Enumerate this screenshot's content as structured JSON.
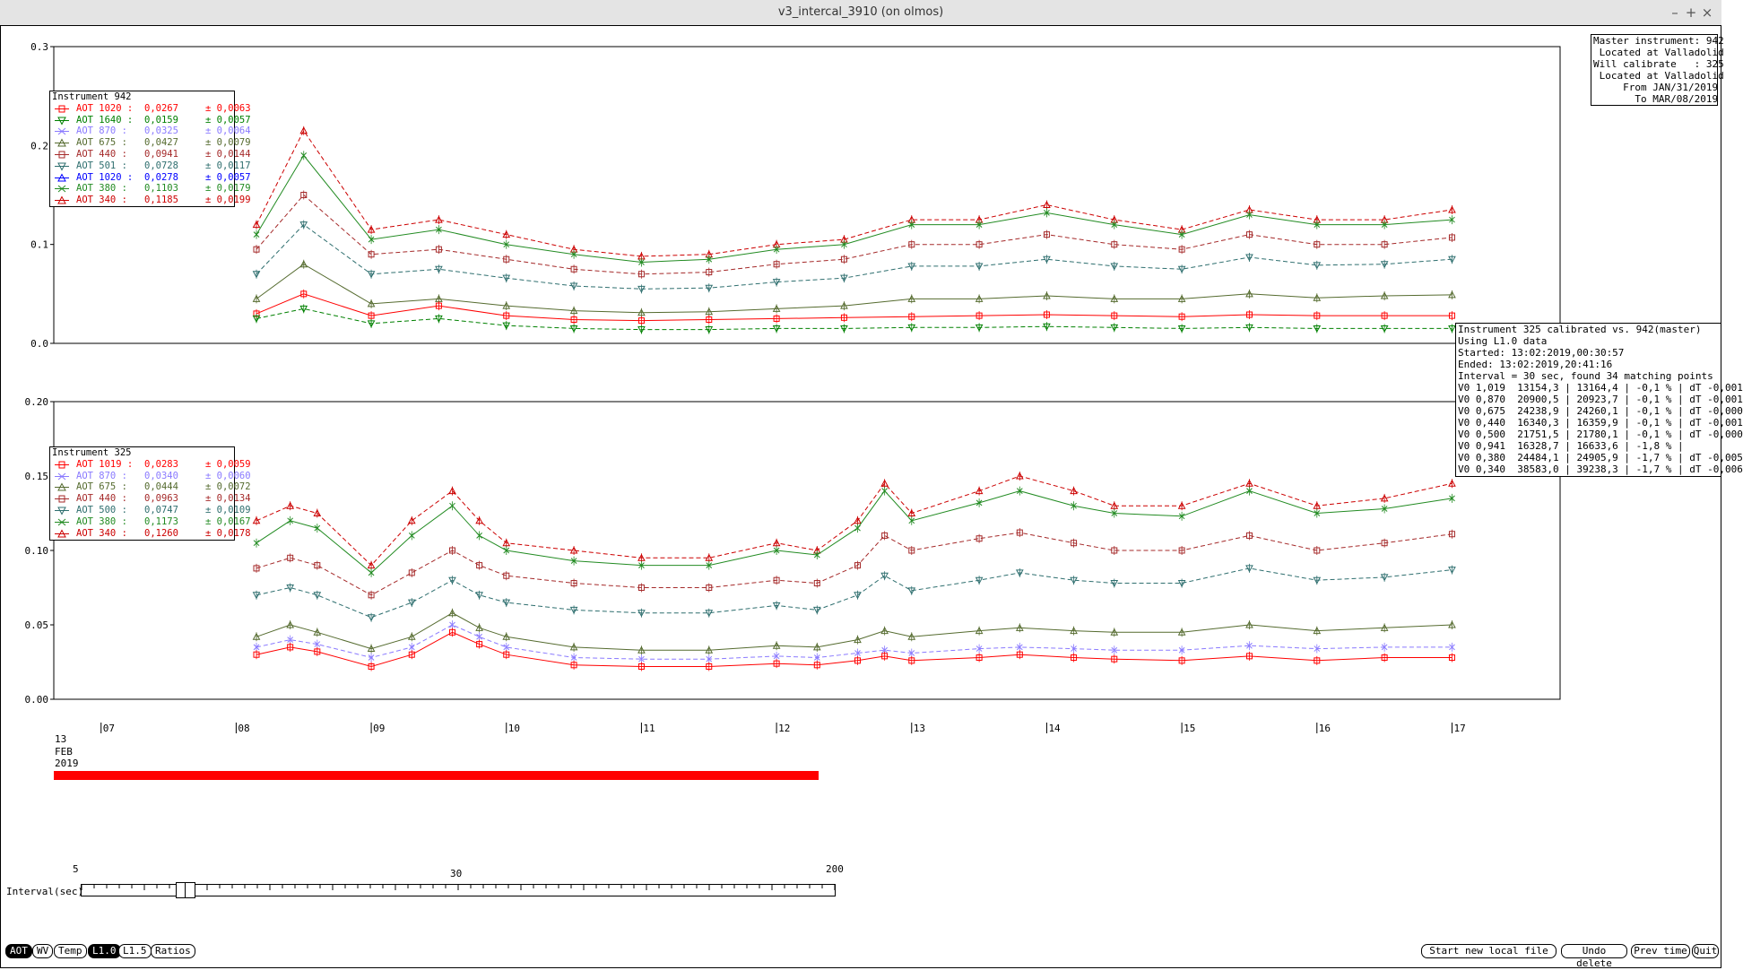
{
  "window": {
    "title": "v3_intercal_3910 (on olmos)",
    "buttons": [
      "–",
      "+",
      "×"
    ]
  },
  "info_top_right": [
    "Master instrument: 942",
    " Located at Valladolid",
    "Will calibrate   : 325",
    " Located at Valladolid",
    "     From JAN/31/2019",
    "       To MAR/08/2019"
  ],
  "calib_box": [
    "Instrument 325 calibrated vs. 942(master)",
    "Using L1.0 data",
    "Started: 13:02:2019,00:30:57",
    "Ended: 13:02:2019,20:41:16",
    "Interval = 30 sec, found 34 matching points",
    "V0 1,019  13154,3 | 13164,4 | -0,1 % | dT -0,001",
    "V0 0,870  20900,5 | 20923,7 | -0,1 % | dT -0,001",
    "V0 0,675  24238,9 | 24260,1 | -0,1 % | dT -0,000",
    "V0 0,440  16340,3 | 16359,9 | -0,1 % | dT -0,001",
    "V0 0,500  21751,5 | 21780,1 | -0,1 % | dT -0,000",
    "V0 0,941  16328,7 | 16633,6 | -1,8 % |",
    "V0 0,380  24484,1 | 24905,9 | -1,7 % | dT -0,005",
    "V0 0,340  38583,0 | 39238,3 | -1,7 % | dT -0,006"
  ],
  "legend_942": {
    "title": "Instrument 942",
    "items": [
      {
        "name": "AOT 1020 :",
        "value": "0,0267",
        "err": "± 0,0063",
        "color": "#ff0000",
        "marker": "square",
        "dash": "solid"
      },
      {
        "name": "AOT 1640 :",
        "value": "0,0159",
        "err": "± 0,0057",
        "color": "#008000",
        "marker": "tri-down",
        "dash": "dashed"
      },
      {
        "name": "AOT 870 :",
        "value": "0,0325",
        "err": "± 0,0064",
        "color": "#8a7aff",
        "marker": "x",
        "dash": "solid"
      },
      {
        "name": "AOT 675 :",
        "value": "0,0427",
        "err": "± 0,0079",
        "color": "#556b2f",
        "marker": "tri-up",
        "dash": "solid"
      },
      {
        "name": "AOT 440 :",
        "value": "0,0941",
        "err": "± 0,0144",
        "color": "#a52a2a",
        "marker": "square",
        "dash": "dashed"
      },
      {
        "name": "AOT 501 :",
        "value": "0,0728",
        "err": "± 0,0117",
        "color": "#2f6f6f",
        "marker": "tri-down",
        "dash": "dashed"
      },
      {
        "name": "AOT 1020 :",
        "value": "0,0278",
        "err": "± 0,0057",
        "color": "#0000ff",
        "marker": "tri-up",
        "dash": "solid"
      },
      {
        "name": "AOT 380 :",
        "value": "0,1103",
        "err": "± 0,0179",
        "color": "#228b22",
        "marker": "x",
        "dash": "solid"
      },
      {
        "name": "AOT 340 :",
        "value": "0,1185",
        "err": "± 0,0199",
        "color": "#cc0000",
        "marker": "tri-up",
        "dash": "dashed"
      }
    ]
  },
  "legend_325": {
    "title": "Instrument 325",
    "items": [
      {
        "name": "AOT 1019 :",
        "value": "0,0283",
        "err": "± 0,0059",
        "color": "#ff0000",
        "marker": "square",
        "dash": "solid"
      },
      {
        "name": "AOT 870 :",
        "value": "0,0340",
        "err": "± 0,0060",
        "color": "#8a7aff",
        "marker": "x",
        "dash": "dashed"
      },
      {
        "name": "AOT 675 :",
        "value": "0,0444",
        "err": "± 0,0072",
        "color": "#556b2f",
        "marker": "tri-up",
        "dash": "solid"
      },
      {
        "name": "AOT 440 :",
        "value": "0,0963",
        "err": "± 0,0134",
        "color": "#a52a2a",
        "marker": "square",
        "dash": "dashed"
      },
      {
        "name": "AOT 500 :",
        "value": "0,0747",
        "err": "± 0,0109",
        "color": "#2f6f6f",
        "marker": "tri-down",
        "dash": "dashed"
      },
      {
        "name": "AOT 380 :",
        "value": "0,1173",
        "err": "± 0,0167",
        "color": "#228b22",
        "marker": "x",
        "dash": "solid"
      },
      {
        "name": "AOT 340 :",
        "value": "0,1260",
        "err": "± 0,0178",
        "color": "#cc0000",
        "marker": "tri-up",
        "dash": "dashed"
      }
    ]
  },
  "date_label": [
    "13",
    "FEB",
    "2019"
  ],
  "interval": {
    "label": "Interval(sec)",
    "ticks": [
      "5",
      "30",
      "200"
    ],
    "value": 30
  },
  "bottom_left_buttons": [
    {
      "label": "AOT",
      "active": true
    },
    {
      "label": "WV",
      "active": false
    },
    {
      "label": "Temp",
      "active": false
    },
    {
      "label": "L1.0",
      "active": true
    },
    {
      "label": "L1.5",
      "active": false
    },
    {
      "label": "Ratios",
      "active": false
    }
  ],
  "bottom_right_buttons": [
    "Start new local file",
    "Undo delete",
    "Prev time",
    "Quit"
  ],
  "chart_data": [
    {
      "type": "line",
      "title": "",
      "xlabel": "",
      "ylabel": "",
      "xlim": [
        6.65,
        17.8
      ],
      "ylim": [
        0,
        0.3
      ],
      "x_tick_labels": [
        "07",
        "08",
        "09",
        "10",
        "11",
        "12",
        "13",
        "14",
        "15",
        "16",
        "17"
      ],
      "y_tick_labels": [
        "0.0",
        "0.1",
        "0.2",
        "0.3"
      ],
      "x_data_note_hours": true,
      "series": [
        {
          "name": "AOT 340",
          "x": [
            8.15,
            8.5,
            9.0,
            9.5,
            10.0,
            10.5,
            11.0,
            11.5,
            12.0,
            12.5,
            13.0,
            13.5,
            14.0,
            14.5,
            15.0,
            15.5,
            16.0,
            16.5,
            17.0
          ],
          "y": [
            0.12,
            0.215,
            0.115,
            0.125,
            0.11,
            0.095,
            0.088,
            0.09,
            0.1,
            0.105,
            0.125,
            0.125,
            0.14,
            0.125,
            0.115,
            0.135,
            0.125,
            0.125,
            0.135
          ]
        },
        {
          "name": "AOT 380",
          "x": [
            8.15,
            8.5,
            9.0,
            9.5,
            10.0,
            10.5,
            11.0,
            11.5,
            12.0,
            12.5,
            13.0,
            13.5,
            14.0,
            14.5,
            15.0,
            15.5,
            16.0,
            16.5,
            17.0
          ],
          "y": [
            0.11,
            0.19,
            0.105,
            0.115,
            0.1,
            0.09,
            0.082,
            0.085,
            0.095,
            0.1,
            0.12,
            0.12,
            0.132,
            0.12,
            0.11,
            0.13,
            0.12,
            0.12,
            0.125
          ]
        },
        {
          "name": "AOT 440",
          "x": [
            8.15,
            8.5,
            9.0,
            9.5,
            10.0,
            10.5,
            11.0,
            11.5,
            12.0,
            12.5,
            13.0,
            13.5,
            14.0,
            14.5,
            15.0,
            15.5,
            16.0,
            16.5,
            17.0
          ],
          "y": [
            0.095,
            0.15,
            0.09,
            0.095,
            0.085,
            0.075,
            0.07,
            0.072,
            0.08,
            0.085,
            0.1,
            0.1,
            0.11,
            0.1,
            0.095,
            0.11,
            0.1,
            0.1,
            0.107
          ]
        },
        {
          "name": "AOT 501",
          "x": [
            8.15,
            8.5,
            9.0,
            9.5,
            10.0,
            10.5,
            11.0,
            11.5,
            12.0,
            12.5,
            13.0,
            13.5,
            14.0,
            14.5,
            15.0,
            15.5,
            16.0,
            16.5,
            17.0
          ],
          "y": [
            0.07,
            0.12,
            0.07,
            0.075,
            0.066,
            0.058,
            0.055,
            0.056,
            0.062,
            0.066,
            0.078,
            0.078,
            0.085,
            0.078,
            0.075,
            0.087,
            0.079,
            0.08,
            0.085
          ]
        },
        {
          "name": "AOT 675",
          "x": [
            8.15,
            8.5,
            9.0,
            9.5,
            10.0,
            10.5,
            11.0,
            11.5,
            12.0,
            12.5,
            13.0,
            13.5,
            14.0,
            14.5,
            15.0,
            15.5,
            16.0,
            16.5,
            17.0
          ],
          "y": [
            0.045,
            0.08,
            0.04,
            0.045,
            0.038,
            0.033,
            0.031,
            0.032,
            0.035,
            0.038,
            0.045,
            0.045,
            0.048,
            0.045,
            0.045,
            0.05,
            0.046,
            0.048,
            0.049
          ]
        },
        {
          "name": "AOT 1020",
          "x": [
            8.15,
            8.5,
            9.0,
            9.5,
            10.0,
            10.5,
            11.0,
            11.5,
            12.0,
            12.5,
            13.0,
            13.5,
            14.0,
            14.5,
            15.0,
            15.5,
            16.0,
            16.5,
            17.0
          ],
          "y": [
            0.03,
            0.05,
            0.028,
            0.038,
            0.028,
            0.024,
            0.023,
            0.024,
            0.025,
            0.026,
            0.027,
            0.028,
            0.029,
            0.028,
            0.027,
            0.029,
            0.028,
            0.028,
            0.028
          ]
        },
        {
          "name": "AOT 1640",
          "x": [
            8.15,
            8.5,
            9.0,
            9.5,
            10.0,
            10.5,
            11.0,
            11.5,
            12.0,
            12.5,
            13.0,
            13.5,
            14.0,
            14.5,
            15.0,
            15.5,
            16.0,
            16.5,
            17.0
          ],
          "y": [
            0.025,
            0.035,
            0.02,
            0.025,
            0.018,
            0.015,
            0.014,
            0.014,
            0.015,
            0.015,
            0.016,
            0.016,
            0.017,
            0.016,
            0.015,
            0.016,
            0.015,
            0.015,
            0.015
          ]
        }
      ]
    },
    {
      "type": "line",
      "title": "",
      "xlabel": "",
      "ylabel": "",
      "xlim": [
        6.65,
        17.8
      ],
      "ylim": [
        0,
        0.2
      ],
      "x_tick_labels": [
        "07",
        "08",
        "09",
        "10",
        "11",
        "12",
        "13",
        "14",
        "15",
        "16",
        "17"
      ],
      "y_tick_labels": [
        "0.00",
        "0.05",
        "0.10",
        "0.15",
        "0.20"
      ],
      "series": [
        {
          "name": "AOT 340",
          "x": [
            8.15,
            8.4,
            8.6,
            9.0,
            9.3,
            9.6,
            9.8,
            10.0,
            10.5,
            11.0,
            11.5,
            12.0,
            12.3,
            12.6,
            12.8,
            13.0,
            13.5,
            13.8,
            14.2,
            14.5,
            15.0,
            15.5,
            16.0,
            16.5,
            17.0
          ],
          "y": [
            0.12,
            0.13,
            0.125,
            0.09,
            0.12,
            0.14,
            0.12,
            0.105,
            0.1,
            0.095,
            0.095,
            0.105,
            0.1,
            0.12,
            0.145,
            0.125,
            0.14,
            0.15,
            0.14,
            0.13,
            0.13,
            0.145,
            0.13,
            0.135,
            0.145
          ]
        },
        {
          "name": "AOT 380",
          "x": [
            8.15,
            8.4,
            8.6,
            9.0,
            9.3,
            9.6,
            9.8,
            10.0,
            10.5,
            11.0,
            11.5,
            12.0,
            12.3,
            12.6,
            12.8,
            13.0,
            13.5,
            13.8,
            14.2,
            14.5,
            15.0,
            15.5,
            16.0,
            16.5,
            17.0
          ],
          "y": [
            0.105,
            0.12,
            0.115,
            0.085,
            0.11,
            0.13,
            0.11,
            0.1,
            0.093,
            0.09,
            0.09,
            0.1,
            0.097,
            0.115,
            0.14,
            0.12,
            0.132,
            0.14,
            0.13,
            0.125,
            0.123,
            0.14,
            0.125,
            0.128,
            0.135
          ]
        },
        {
          "name": "AOT 440",
          "x": [
            8.15,
            8.4,
            8.6,
            9.0,
            9.3,
            9.6,
            9.8,
            10.0,
            10.5,
            11.0,
            11.5,
            12.0,
            12.3,
            12.6,
            12.8,
            13.0,
            13.5,
            13.8,
            14.2,
            14.5,
            15.0,
            15.5,
            16.0,
            16.5,
            17.0
          ],
          "y": [
            0.088,
            0.095,
            0.09,
            0.07,
            0.085,
            0.1,
            0.09,
            0.083,
            0.078,
            0.075,
            0.075,
            0.08,
            0.078,
            0.09,
            0.11,
            0.1,
            0.108,
            0.112,
            0.105,
            0.1,
            0.1,
            0.11,
            0.1,
            0.105,
            0.111
          ]
        },
        {
          "name": "AOT 500",
          "x": [
            8.15,
            8.4,
            8.6,
            9.0,
            9.3,
            9.6,
            9.8,
            10.0,
            10.5,
            11.0,
            11.5,
            12.0,
            12.3,
            12.6,
            12.8,
            13.0,
            13.5,
            13.8,
            14.2,
            14.5,
            15.0,
            15.5,
            16.0,
            16.5,
            17.0
          ],
          "y": [
            0.07,
            0.075,
            0.07,
            0.055,
            0.065,
            0.08,
            0.07,
            0.065,
            0.06,
            0.058,
            0.058,
            0.063,
            0.06,
            0.07,
            0.083,
            0.073,
            0.08,
            0.085,
            0.08,
            0.078,
            0.078,
            0.088,
            0.08,
            0.082,
            0.087
          ]
        },
        {
          "name": "AOT 675",
          "x": [
            8.15,
            8.4,
            8.6,
            9.0,
            9.3,
            9.6,
            9.8,
            10.0,
            10.5,
            11.0,
            11.5,
            12.0,
            12.3,
            12.6,
            12.8,
            13.0,
            13.5,
            13.8,
            14.2,
            14.5,
            15.0,
            15.5,
            16.0,
            16.5,
            17.0
          ],
          "y": [
            0.042,
            0.05,
            0.045,
            0.034,
            0.042,
            0.058,
            0.048,
            0.042,
            0.035,
            0.033,
            0.033,
            0.036,
            0.035,
            0.04,
            0.046,
            0.042,
            0.046,
            0.048,
            0.046,
            0.045,
            0.045,
            0.05,
            0.046,
            0.048,
            0.05
          ]
        },
        {
          "name": "AOT 870",
          "x": [
            8.15,
            8.4,
            8.6,
            9.0,
            9.3,
            9.6,
            9.8,
            10.0,
            10.5,
            11.0,
            11.5,
            12.0,
            12.3,
            12.6,
            12.8,
            13.0,
            13.5,
            13.8,
            14.2,
            14.5,
            15.0,
            15.5,
            16.0,
            16.5,
            17.0
          ],
          "y": [
            0.035,
            0.04,
            0.037,
            0.028,
            0.035,
            0.05,
            0.042,
            0.035,
            0.028,
            0.027,
            0.027,
            0.029,
            0.028,
            0.031,
            0.033,
            0.031,
            0.034,
            0.035,
            0.034,
            0.033,
            0.033,
            0.036,
            0.034,
            0.035,
            0.035
          ]
        },
        {
          "name": "AOT 1019",
          "x": [
            8.15,
            8.4,
            8.6,
            9.0,
            9.3,
            9.6,
            9.8,
            10.0,
            10.5,
            11.0,
            11.5,
            12.0,
            12.3,
            12.6,
            12.8,
            13.0,
            13.5,
            13.8,
            14.2,
            14.5,
            15.0,
            15.5,
            16.0,
            16.5,
            17.0
          ],
          "y": [
            0.03,
            0.035,
            0.032,
            0.022,
            0.03,
            0.045,
            0.037,
            0.03,
            0.023,
            0.022,
            0.022,
            0.024,
            0.023,
            0.026,
            0.029,
            0.026,
            0.028,
            0.03,
            0.028,
            0.027,
            0.026,
            0.029,
            0.026,
            0.028,
            0.028
          ]
        }
      ]
    }
  ]
}
